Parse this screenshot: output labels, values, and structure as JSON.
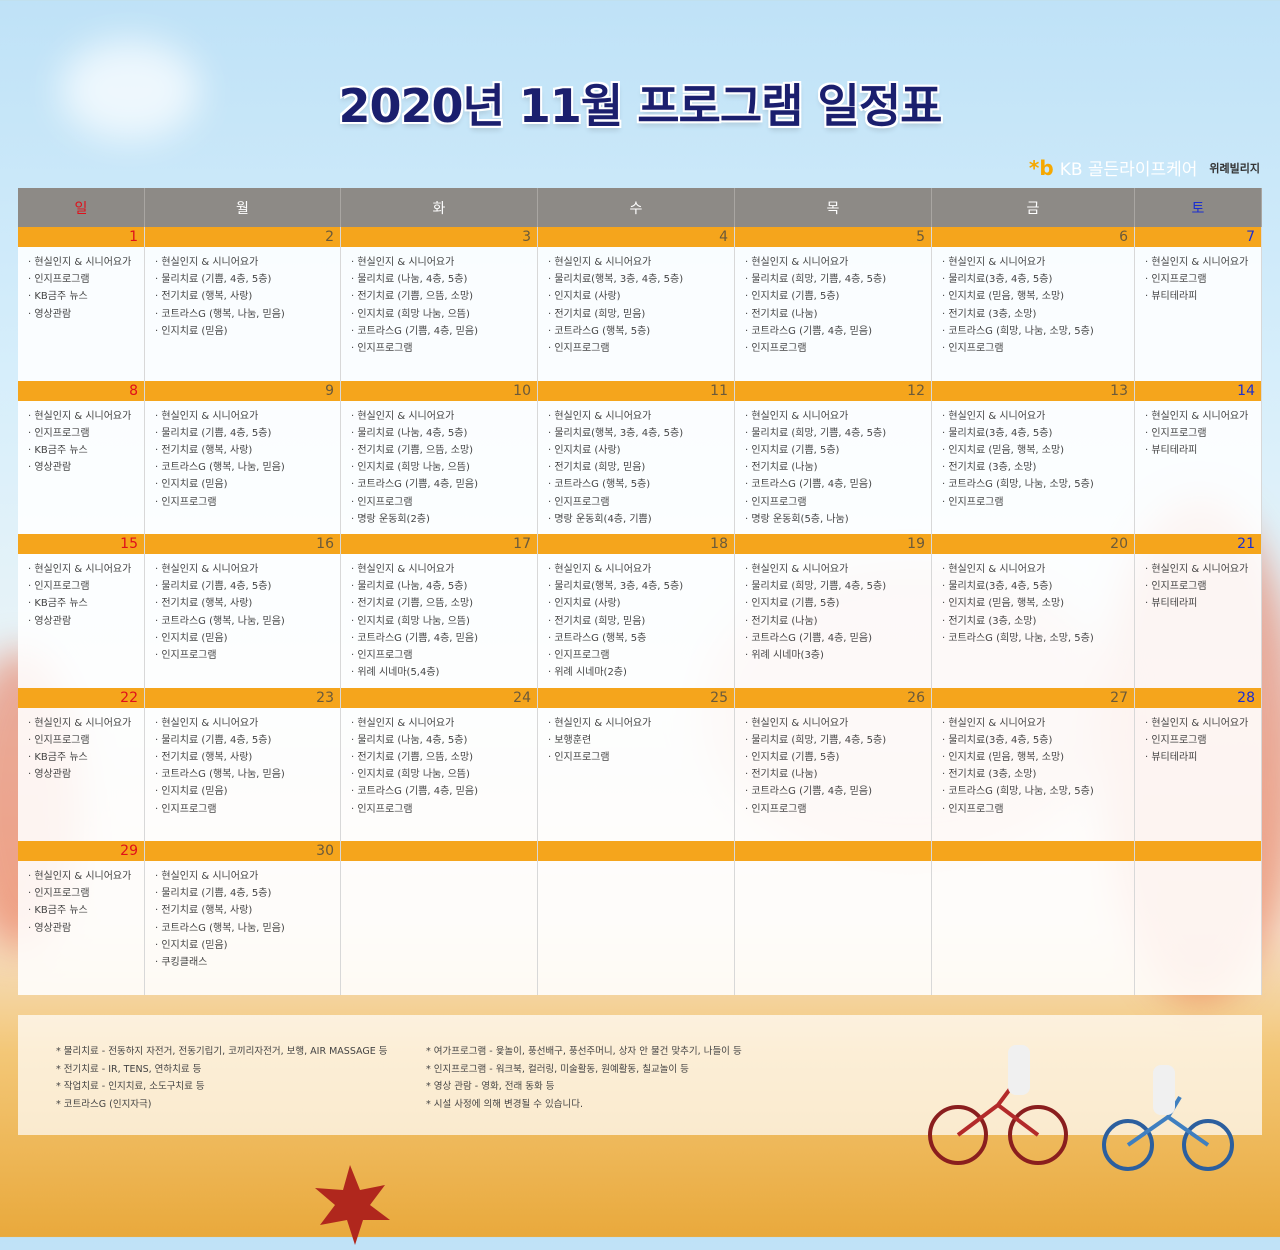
{
  "title": "2020년 11월 프로그램 일정표",
  "logo": {
    "symbol": "*b",
    "brand": "KB 골든라이프케어",
    "sub": "위례빌리지"
  },
  "colors": {
    "header_bg": "#8d8a86",
    "date_bar": "#f5a51c",
    "sunday": "#e0101a",
    "saturday": "#1b2fd0",
    "title": "#1b1f6e"
  },
  "weekdays": [
    "일",
    "월",
    "화",
    "수",
    "목",
    "금",
    "토"
  ],
  "weeks": [
    {
      "days": [
        {
          "date": "1",
          "items": [
            "현실인지 & 시니어요가",
            "인지프로그램",
            "KB금주 뉴스",
            "영상관람"
          ]
        },
        {
          "date": "2",
          "items": [
            "현실인지 & 시니어요가",
            "물리치료 (기쁨, 4층, 5층)",
            "전기치료 (행복, 사랑)",
            "코트라스G (행복, 나눔, 믿음)",
            "인지치료 (믿음)"
          ]
        },
        {
          "date": "3",
          "items": [
            "현실인지 & 시니어요가",
            "물리치료 (나눔, 4층, 5층)",
            "전기치료 (기쁨, 으뜸, 소망)",
            "인지치료 (희망 나눔, 으뜸)",
            "코트라스G (기쁨, 4층, 믿음)",
            "인지프로그램"
          ]
        },
        {
          "date": "4",
          "items": [
            "현실인지 & 시니어요가",
            "물리치료(행복, 3층, 4층, 5층)",
            "인지치료 (사랑)",
            "전기치료 (희망, 믿음)",
            "코트라스G (행복, 5층)",
            "인지프로그램"
          ]
        },
        {
          "date": "5",
          "items": [
            "현실인지 & 시니어요가",
            "물리치료 (희망, 기쁨, 4층, 5층)",
            "인지치료 (기쁨, 5층)",
            "전기치료 (나눔)",
            "코트라스G (기쁨, 4층, 믿음)",
            "인지프로그램"
          ]
        },
        {
          "date": "6",
          "items": [
            "현실인지 & 시니어요가",
            "물리치료(3층, 4층, 5층)",
            "인지치료 (믿음, 행복, 소망)",
            "전기치료 (3층, 소망)",
            "코트라스G (희망, 나눔, 소망, 5층)",
            "인지프로그램"
          ]
        },
        {
          "date": "7",
          "items": [
            "현실인지 & 시니어요가",
            "인지프로그램",
            "뷰티테라피"
          ]
        }
      ]
    },
    {
      "days": [
        {
          "date": "8",
          "items": [
            "현실인지 & 시니어요가",
            "인지프로그램",
            "KB금주 뉴스",
            "영상관람"
          ]
        },
        {
          "date": "9",
          "items": [
            "현실인지 & 시니어요가",
            "물리치료 (기쁨, 4층, 5층)",
            "전기치료 (행복, 사랑)",
            "코트라스G (행복, 나눔, 믿음)",
            "인지치료 (믿음)",
            "인지프로그램"
          ]
        },
        {
          "date": "10",
          "items": [
            "현실인지 & 시니어요가",
            "물리치료 (나눔, 4층, 5층)",
            "전기치료 (기쁨, 으뜸, 소망)",
            "인지치료 (희망 나눔, 으뜸)",
            "코트라스G (기쁨, 4층, 믿음)",
            "인지프로그램",
            "명랑 운동회(2층)"
          ]
        },
        {
          "date": "11",
          "items": [
            "현실인지 & 시니어요가",
            "물리치료(행복, 3층, 4층, 5층)",
            "인지치료 (사랑)",
            "전기치료 (희망, 믿음)",
            "코트라스G (행복, 5층)",
            "인지프로그램",
            "명랑 운동회(4층, 기쁨)"
          ]
        },
        {
          "date": "12",
          "items": [
            "현실인지 & 시니어요가",
            "물리치료 (희망, 기쁨, 4층, 5층)",
            "인지치료 (기쁨, 5층)",
            "전기치료 (나눔)",
            "코트라스G (기쁨, 4층, 믿음)",
            "인지프로그램",
            "명랑 운동회(5층, 나눔)"
          ]
        },
        {
          "date": "13",
          "items": [
            "현실인지 & 시니어요가",
            "물리치료(3층, 4층, 5층)",
            "인지치료 (믿음, 행복, 소망)",
            "전기치료 (3층, 소망)",
            "코트라스G (희망, 나눔, 소망, 5층)",
            "인지프로그램"
          ]
        },
        {
          "date": "14",
          "items": [
            "현실인지 & 시니어요가",
            "인지프로그램",
            "뷰티테라피"
          ]
        }
      ]
    },
    {
      "days": [
        {
          "date": "15",
          "items": [
            "현실인지 & 시니어요가",
            "인지프로그램",
            "KB금주 뉴스",
            "영상관람"
          ]
        },
        {
          "date": "16",
          "items": [
            "현실인지 & 시니어요가",
            "물리치료 (기쁨, 4층, 5층)",
            "전기치료 (행복, 사랑)",
            "코트라스G (행복, 나눔, 믿음)",
            "인지치료 (믿음)",
            "인지프로그램"
          ]
        },
        {
          "date": "17",
          "items": [
            "현실인지 & 시니어요가",
            "물리치료 (나눔, 4층, 5층)",
            "전기치료 (기쁨, 으뜸, 소망)",
            "인지치료 (희망 나눔, 으뜸)",
            "코트라스G (기쁨, 4층, 믿음)",
            "인지프로그램",
            "위례 시네마(5,4층)"
          ]
        },
        {
          "date": "18",
          "items": [
            "현실인지 & 시니어요가",
            "물리치료(행복, 3층, 4층, 5층)",
            "인지치료 (사랑)",
            "전기치료 (희망, 믿음)",
            "코트라스G (행복, 5층",
            "인지프로그램",
            "위례 시네마(2층)"
          ]
        },
        {
          "date": "19",
          "items": [
            "현실인지 & 시니어요가",
            "물리치료 (희망, 기쁨, 4층, 5층)",
            "인지치료 (기쁨, 5층)",
            "전기치료 (나눔)",
            "코트라스G (기쁨, 4층, 믿음)",
            "위례 시네마(3층)"
          ]
        },
        {
          "date": "20",
          "items": [
            "현실인지 & 시니어요가",
            "물리치료(3층, 4층, 5층)",
            "인지치료 (믿음, 행복, 소망)",
            "전기치료 (3층, 소망)",
            "코트라스G (희망, 나눔, 소망, 5층)"
          ]
        },
        {
          "date": "21",
          "items": [
            "현실인지 & 시니어요가",
            "인지프로그램",
            "뷰티테라피"
          ]
        }
      ]
    },
    {
      "days": [
        {
          "date": "22",
          "items": [
            "현실인지 & 시니어요가",
            "인지프로그램",
            "KB금주 뉴스",
            "영상관람"
          ]
        },
        {
          "date": "23",
          "items": [
            "현실인지 & 시니어요가",
            "물리치료 (기쁨, 4층, 5층)",
            "전기치료 (행복, 사랑)",
            "코트라스G (행복, 나눔, 믿음)",
            "인지치료 (믿음)",
            "인지프로그램"
          ]
        },
        {
          "date": "24",
          "items": [
            "현실인지 & 시니어요가",
            "물리치료 (나눔, 4층, 5층)",
            "전기치료 (기쁨, 으뜸, 소망)",
            "인지치료 (희망 나눔, 으뜸)",
            "코트라스G (기쁨, 4층, 믿음)",
            "인지프로그램"
          ]
        },
        {
          "date": "25",
          "items": [
            "현실인지 & 시니어요가",
            "보행훈련",
            "인지프로그램"
          ]
        },
        {
          "date": "26",
          "items": [
            "현실인지 & 시니어요가",
            "물리치료 (희망, 기쁨, 4층, 5층)",
            "인지치료 (기쁨, 5층)",
            "전기치료 (나눔)",
            "코트라스G (기쁨, 4층, 믿음)",
            "인지프로그램"
          ]
        },
        {
          "date": "27",
          "items": [
            "현실인지 & 시니어요가",
            "물리치료(3층, 4층, 5층)",
            "인지치료 (믿음, 행복, 소망)",
            "전기치료 (3층, 소망)",
            "코트라스G (희망, 나눔, 소망, 5층)",
            "인지프로그램"
          ]
        },
        {
          "date": "28",
          "items": [
            "현실인지 & 시니어요가",
            "인지프로그램",
            "뷰티테라피"
          ]
        }
      ]
    },
    {
      "days": [
        {
          "date": "29",
          "items": [
            "현실인지 & 시니어요가",
            "인지프로그램",
            "KB금주 뉴스",
            "영상관람"
          ]
        },
        {
          "date": "30",
          "items": [
            "현실인지 & 시니어요가",
            "물리치료 (기쁨, 4층, 5층)",
            "전기치료 (행복, 사랑)",
            "코트라스G (행복, 나눔, 믿음)",
            "인지치료 (믿음)",
            "쿠킹클래스"
          ]
        },
        {
          "date": "",
          "items": []
        },
        {
          "date": "",
          "items": []
        },
        {
          "date": "",
          "items": []
        },
        {
          "date": "",
          "items": []
        },
        {
          "date": "",
          "items": []
        }
      ]
    }
  ],
  "notes": {
    "left": [
      "물리치료 - 전동하지 자전거, 전동기립기, 코끼리자전거, 보행, AIR MASSAGE 등",
      "전기치료 - IR, TENS, 연하치료 등",
      "작업치료 - 인지치료, 소도구치료 등",
      "코트라스G (인지자극)"
    ],
    "right": [
      "여가프로그램 - 윷놀이, 풍선배구, 풍선주머니, 상자 안 물건 맞추기, 나들이 등",
      "인지프로그램 - 워크북, 컬러링, 미술활동, 원예활동, 칠교놀이 등",
      "영상 관람 - 영화, 전래 동화 등",
      "시설 사정에 의해 변경될 수 있습니다."
    ]
  }
}
